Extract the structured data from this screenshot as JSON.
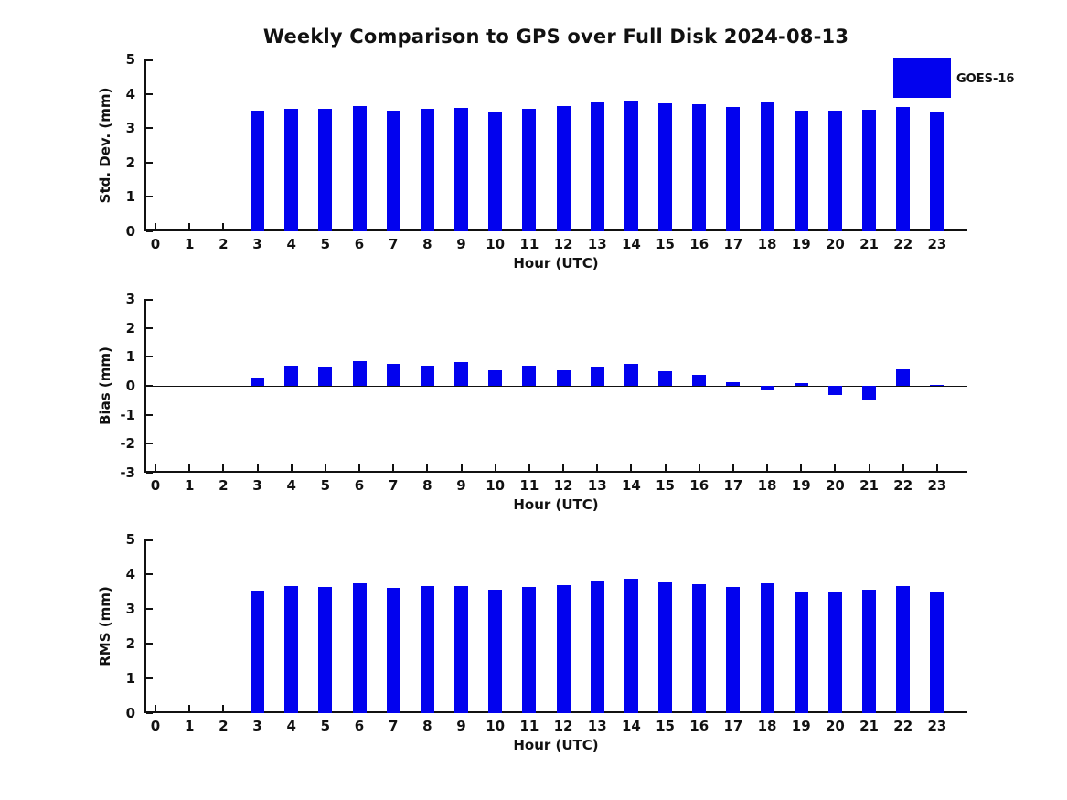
{
  "title": "Weekly Comparison to GPS over Full Disk 2024-08-13",
  "legend": {
    "label": "GOES-16"
  },
  "colors": {
    "bar": "#0202EE",
    "axis": "#111111"
  },
  "chart_data": [
    {
      "name": "std-dev",
      "type": "bar",
      "ylabel": "Std. Dev. (mm)",
      "xlabel": "Hour (UTC)",
      "ylim": [
        0,
        5
      ],
      "yticks": [
        0,
        1,
        2,
        3,
        4,
        5
      ],
      "categories": [
        0,
        1,
        2,
        3,
        4,
        5,
        6,
        7,
        8,
        9,
        10,
        11,
        12,
        13,
        14,
        15,
        16,
        17,
        18,
        19,
        20,
        21,
        22,
        23
      ],
      "values": [
        null,
        null,
        null,
        3.5,
        3.57,
        3.57,
        3.64,
        3.51,
        3.57,
        3.6,
        3.48,
        3.57,
        3.65,
        3.75,
        3.8,
        3.73,
        3.69,
        3.63,
        3.75,
        3.5,
        3.5,
        3.53,
        3.62,
        3.46
      ],
      "legend": "GOES-16",
      "grid": false,
      "legend_position": "upper right"
    },
    {
      "name": "bias",
      "type": "bar",
      "ylabel": "Bias (mm)",
      "xlabel": "Hour (UTC)",
      "ylim": [
        -3,
        3
      ],
      "yticks": [
        -3,
        -2,
        -1,
        0,
        1,
        2,
        3
      ],
      "categories": [
        0,
        1,
        2,
        3,
        4,
        5,
        6,
        7,
        8,
        9,
        10,
        11,
        12,
        13,
        14,
        15,
        16,
        17,
        18,
        19,
        20,
        21,
        22,
        23
      ],
      "values": [
        null,
        null,
        null,
        0.29,
        0.7,
        0.66,
        0.86,
        0.76,
        0.68,
        0.81,
        0.55,
        0.68,
        0.54,
        0.65,
        0.77,
        0.5,
        0.38,
        0.14,
        -0.17,
        0.08,
        -0.3,
        -0.47,
        0.57,
        0.04
      ],
      "legend": "GOES-16",
      "grid": false
    },
    {
      "name": "rms",
      "type": "bar",
      "ylabel": "RMS (mm)",
      "xlabel": "Hour (UTC)",
      "ylim": [
        0,
        5
      ],
      "yticks": [
        0,
        1,
        2,
        3,
        4,
        5
      ],
      "categories": [
        0,
        1,
        2,
        3,
        4,
        5,
        6,
        7,
        8,
        9,
        10,
        11,
        12,
        13,
        14,
        15,
        16,
        17,
        18,
        19,
        20,
        21,
        22,
        23
      ],
      "values": [
        null,
        null,
        null,
        3.52,
        3.65,
        3.62,
        3.75,
        3.6,
        3.65,
        3.67,
        3.54,
        3.63,
        3.68,
        3.78,
        3.87,
        3.76,
        3.71,
        3.63,
        3.74,
        3.51,
        3.51,
        3.55,
        3.66,
        3.47
      ],
      "legend": "GOES-16",
      "grid": false
    }
  ]
}
